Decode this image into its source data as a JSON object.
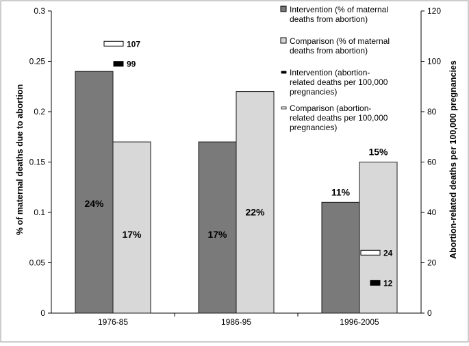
{
  "chart_data": {
    "type": "bar",
    "categories": [
      "1976-85",
      "1986-95",
      "1996-2005"
    ],
    "y_left": {
      "label": "% of maternal deaths due to abortion",
      "ylim": [
        0,
        0.3
      ],
      "ticks": [
        "0",
        "0.05",
        "0.1",
        "0.15",
        "0.2",
        "0.25",
        "0.3"
      ]
    },
    "y_right": {
      "label": "Abortion-related deaths per 100,000 pregnancies",
      "ylim": [
        0,
        120
      ],
      "ticks": [
        "0",
        "20",
        "40",
        "60",
        "80",
        "100",
        "120"
      ]
    },
    "series": [
      {
        "name": "Intervention (% of maternal deaths from abortion)",
        "axis": "left",
        "color": "#7a7a7a",
        "values": [
          0.24,
          0.17,
          0.11
        ],
        "labels": [
          "24%",
          "17%",
          "11%"
        ],
        "label_position": [
          "inside",
          "inside",
          "above"
        ]
      },
      {
        "name": "Comparison (% of maternal deaths from abortion)",
        "axis": "left",
        "color": "#d8d8d8",
        "values": [
          0.17,
          0.22,
          0.15
        ],
        "labels": [
          "17%",
          "22%",
          "15%"
        ],
        "label_position": [
          "inside",
          "inside",
          "above"
        ]
      },
      {
        "name": "Intervention (abortion-related deaths per 100,000 pregnancies)",
        "axis": "right",
        "marker": "dash",
        "color": "#000000",
        "values": [
          99,
          null,
          12
        ],
        "labels": [
          "99",
          "",
          "12"
        ]
      },
      {
        "name": "Comparison (abortion-related deaths per 100,000 pregnancies)",
        "axis": "right",
        "marker": "dash-outline",
        "color": "#ffffff",
        "values": [
          107,
          null,
          24
        ],
        "labels": [
          "107",
          "",
          "24"
        ]
      }
    ],
    "legend": [
      {
        "line1": "Intervention (% of maternal",
        "line2": "deaths from abortion)",
        "line3": ""
      },
      {
        "line1": "Comparison (% of maternal",
        "line2": "deaths from abortion)",
        "line3": ""
      },
      {
        "line1": "Intervention (abortion-",
        "line2": "related deaths per 100,000",
        "line3": "pregnancies)"
      },
      {
        "line1": "Comparison (abortion-",
        "line2": "related deaths per 100,000",
        "line3": "pregnancies)"
      }
    ],
    "legend_position": "top-right",
    "grid": false
  }
}
